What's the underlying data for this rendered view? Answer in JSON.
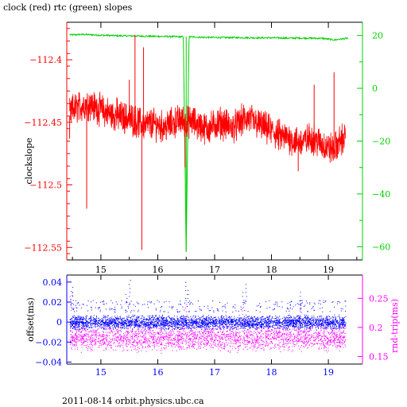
{
  "page": {
    "title": "clock (red) rtc (green) slopes",
    "footer": "2011-08-14  orbit.physics.ubc.ca"
  },
  "colors": {
    "clock": "#ff0000",
    "rtc": "#00d000",
    "offset": "#0000ff",
    "rndtrip": "#ff00ff",
    "axis_black": "#000000"
  },
  "chart_data": [
    {
      "type": "line",
      "title": "clock (red) rtc (green) slopes",
      "xlabel": "",
      "ylabel": "clockslope",
      "y2label": "",
      "xlim": [
        14.4,
        19.6
      ],
      "ylim": [
        -112.56,
        -112.37
      ],
      "y2lim": [
        -65,
        25
      ],
      "xticks": [
        15,
        16,
        17,
        18,
        19
      ],
      "yticks": [
        -112.4,
        -112.45,
        -112.5,
        -112.55
      ],
      "y2ticks": [
        20,
        0,
        -20,
        -40,
        -60
      ],
      "grid": false,
      "series": [
        {
          "name": "clock",
          "axis": "left",
          "color": "#ff0000",
          "x": [
            14.45,
            14.5,
            14.6,
            14.7,
            14.8,
            14.9,
            15.0,
            15.1,
            15.2,
            15.3,
            15.4,
            15.5,
            15.6,
            15.7,
            15.8,
            15.9,
            16.0,
            16.1,
            16.2,
            16.3,
            16.4,
            16.5,
            16.6,
            16.7,
            16.8,
            16.9,
            17.0,
            17.1,
            17.2,
            17.3,
            17.4,
            17.5,
            17.6,
            17.7,
            17.8,
            17.9,
            18.0,
            18.1,
            18.2,
            18.3,
            18.4,
            18.5,
            18.6,
            18.7,
            18.8,
            18.9,
            19.0,
            19.1,
            19.2,
            19.3
          ],
          "values": [
            -112.445,
            -112.44,
            -112.438,
            -112.436,
            -112.435,
            -112.438,
            -112.44,
            -112.442,
            -112.444,
            -112.445,
            -112.446,
            -112.447,
            -112.449,
            -112.451,
            -112.452,
            -112.451,
            -112.452,
            -112.454,
            -112.452,
            -112.45,
            -112.448,
            -112.45,
            -112.449,
            -112.452,
            -112.454,
            -112.455,
            -112.452,
            -112.45,
            -112.452,
            -112.454,
            -112.452,
            -112.448,
            -112.447,
            -112.45,
            -112.452,
            -112.455,
            -112.457,
            -112.46,
            -112.462,
            -112.462,
            -112.465,
            -112.466,
            -112.465,
            -112.462,
            -112.465,
            -112.468,
            -112.47,
            -112.472,
            -112.465,
            -112.462
          ],
          "spikes": [
            {
              "x": 14.45,
              "value": -112.463
            },
            {
              "x": 14.75,
              "value": -112.519
            },
            {
              "x": 15.0,
              "value": -112.432
            },
            {
              "x": 15.28,
              "value": -112.43
            },
            {
              "x": 15.5,
              "value": -112.416
            },
            {
              "x": 15.6,
              "value": -112.38
            },
            {
              "x": 15.72,
              "value": -112.552
            },
            {
              "x": 15.75,
              "value": -112.39
            },
            {
              "x": 16.48,
              "value": -112.486
            },
            {
              "x": 18.12,
              "value": -112.465
            },
            {
              "x": 18.47,
              "value": -112.489
            },
            {
              "x": 18.75,
              "value": -112.42
            },
            {
              "x": 19.1,
              "value": -112.41
            }
          ]
        },
        {
          "name": "rtc",
          "axis": "right",
          "color": "#00d000",
          "x": [
            14.45,
            14.7,
            15.0,
            15.3,
            15.6,
            15.9,
            16.2,
            16.45,
            16.5,
            16.55,
            16.8,
            17.1,
            17.4,
            17.7,
            18.0,
            18.3,
            18.6,
            18.9,
            19.1,
            19.35
          ],
          "values": [
            20.2,
            20.4,
            20.1,
            19.9,
            19.8,
            19.7,
            19.6,
            19.5,
            -62.0,
            19.5,
            19.3,
            19.2,
            19.2,
            19.1,
            19.1,
            19.0,
            19.0,
            18.9,
            18.3,
            19.0
          ]
        }
      ]
    },
    {
      "type": "scatter",
      "xlabel": "",
      "ylabel": "offset(ms)",
      "y2label": "rnd-trip(ms)",
      "xlim": [
        14.4,
        19.6
      ],
      "ylim": [
        -0.042,
        0.047
      ],
      "y2lim": [
        0.137,
        0.29
      ],
      "xticks": [
        15,
        16,
        17,
        18,
        19
      ],
      "yticks": [
        0.04,
        0.02,
        0,
        -0.02,
        -0.04
      ],
      "y2ticks": [
        0.25,
        0.2,
        0.15
      ],
      "grid": false,
      "series": [
        {
          "name": "offset",
          "axis": "left",
          "color": "#0000ff",
          "band": {
            "x": [
              14.45,
              19.3
            ],
            "center": 0.0,
            "spread": 0.007
          },
          "outliers": [
            {
              "x": 14.48,
              "value": 0.035
            },
            {
              "x": 14.5,
              "value": 0.03
            },
            {
              "x": 15.45,
              "value": 0.028
            },
            {
              "x": 15.5,
              "value": 0.042
            },
            {
              "x": 16.5,
              "value": 0.04
            },
            {
              "x": 16.52,
              "value": 0.032
            },
            {
              "x": 17.5,
              "value": 0.03
            },
            {
              "x": 17.55,
              "value": 0.038
            },
            {
              "x": 18.5,
              "value": 0.03
            },
            {
              "x": 18.52,
              "value": 0.022
            }
          ]
        },
        {
          "name": "rnd-trip",
          "axis": "right",
          "color": "#ff00ff",
          "band": {
            "x": [
              14.45,
              19.3
            ],
            "center": 0.188,
            "spread": 0.018
          },
          "outliers": [
            {
              "x": 14.47,
              "value": 0.26
            },
            {
              "x": 16.5,
              "value": 0.24
            },
            {
              "x": 17.5,
              "value": 0.235
            },
            {
              "x": 18.5,
              "value": 0.24
            }
          ]
        }
      ]
    }
  ]
}
